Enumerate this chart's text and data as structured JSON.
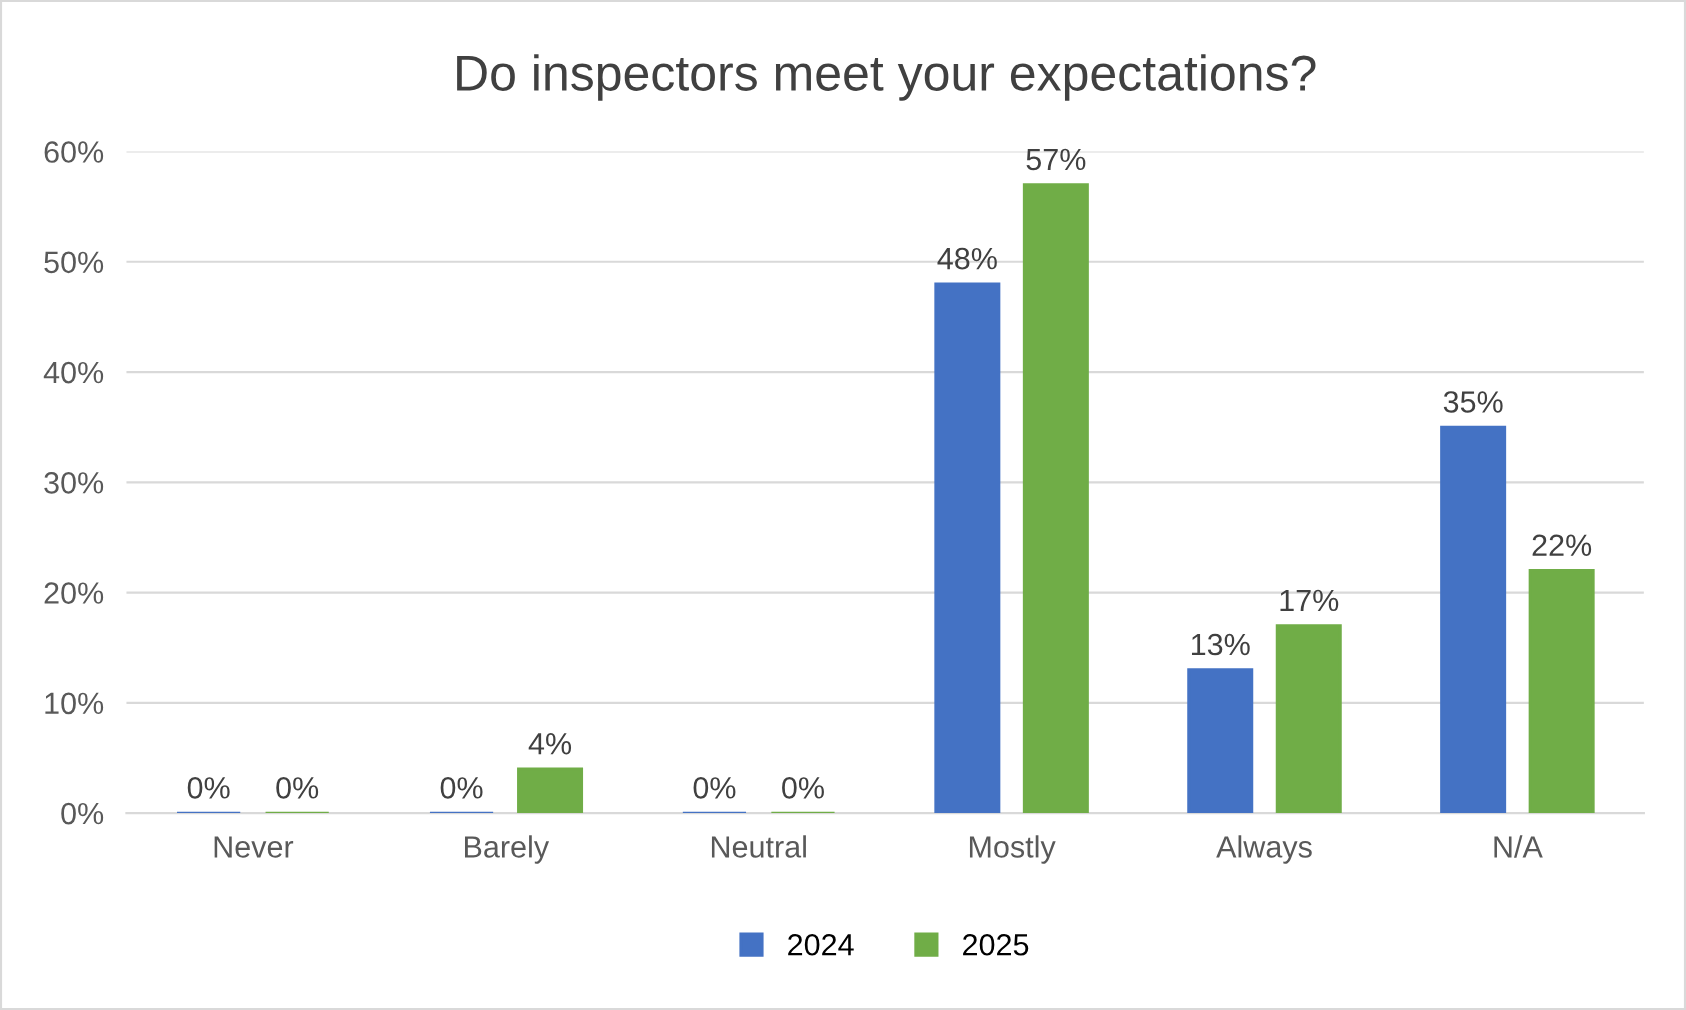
{
  "chart_data": {
    "type": "bar",
    "title": "Do inspectors meet your expectations?",
    "categories": [
      "Never",
      "Barely",
      "Neutral",
      "Mostly",
      "Always",
      "N/A"
    ],
    "series": [
      {
        "name": "2024",
        "color": "#4472c4",
        "values": [
          0,
          0,
          0,
          48,
          13,
          35
        ],
        "value_labels": [
          "0%",
          "0%",
          "0%",
          "48%",
          "13%",
          "35%"
        ]
      },
      {
        "name": "2025",
        "color": "#70ad47",
        "values": [
          0,
          4,
          0,
          57,
          17,
          22
        ],
        "value_labels": [
          "0%",
          "4%",
          "0%",
          "57%",
          "17%",
          "22%"
        ]
      }
    ],
    "ylim": [
      0,
      60
    ],
    "yticks": [
      {
        "value": 0,
        "label": "0%"
      },
      {
        "value": 10,
        "label": "10%"
      },
      {
        "value": 20,
        "label": "20%"
      },
      {
        "value": 30,
        "label": "30%"
      },
      {
        "value": 40,
        "label": "40%"
      },
      {
        "value": 50,
        "label": "50%"
      },
      {
        "value": 60,
        "label": "60%"
      }
    ],
    "grid": "y",
    "legend": "bottom"
  }
}
